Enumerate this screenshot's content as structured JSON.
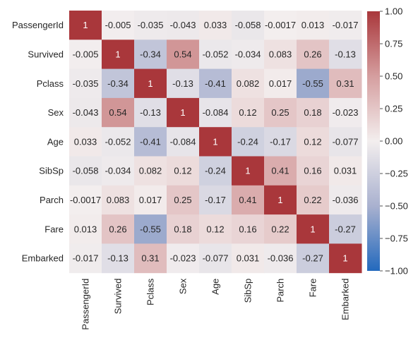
{
  "chart_data": {
    "type": "heatmap",
    "title": "",
    "xlabel": "",
    "ylabel": "",
    "row_labels": [
      "PassengerId",
      "Survived",
      "Pclass",
      "Sex",
      "Age",
      "SibSp",
      "Parch",
      "Fare",
      "Embarked"
    ],
    "col_labels": [
      "PassengerId",
      "Survived",
      "Pclass",
      "Sex",
      "Age",
      "SibSp",
      "Parch",
      "Fare",
      "Embarked"
    ],
    "values": [
      [
        1,
        -0.005,
        -0.035,
        -0.043,
        0.033,
        -0.058,
        -0.0017,
        0.013,
        -0.017
      ],
      [
        -0.005,
        1,
        -0.34,
        0.54,
        -0.052,
        -0.034,
        0.083,
        0.26,
        -0.13
      ],
      [
        -0.035,
        -0.34,
        1,
        -0.13,
        -0.41,
        0.082,
        0.017,
        -0.55,
        0.31
      ],
      [
        -0.043,
        0.54,
        -0.13,
        1,
        -0.084,
        0.12,
        0.25,
        0.18,
        -0.023
      ],
      [
        0.033,
        -0.052,
        -0.41,
        -0.084,
        1,
        -0.24,
        -0.17,
        0.12,
        -0.077
      ],
      [
        -0.058,
        -0.034,
        0.082,
        0.12,
        -0.24,
        1,
        0.41,
        0.16,
        0.031
      ],
      [
        -0.0017,
        0.083,
        0.017,
        0.25,
        -0.17,
        0.41,
        1,
        0.22,
        -0.036
      ],
      [
        0.013,
        0.26,
        -0.55,
        0.18,
        0.12,
        0.16,
        0.22,
        1,
        -0.27
      ],
      [
        -0.017,
        -0.13,
        0.31,
        -0.023,
        -0.077,
        0.031,
        -0.036,
        -0.27,
        1
      ]
    ],
    "cell_labels": [
      [
        "1",
        "-0.005",
        "-0.035",
        "-0.043",
        "0.033",
        "-0.058",
        "-0.0017",
        "0.013",
        "-0.017"
      ],
      [
        "-0.005",
        "1",
        "-0.34",
        "0.54",
        "-0.052",
        "-0.034",
        "0.083",
        "0.26",
        "-0.13"
      ],
      [
        "-0.035",
        "-0.34",
        "1",
        "-0.13",
        "-0.41",
        "0.082",
        "0.017",
        "-0.55",
        "0.31"
      ],
      [
        "-0.043",
        "0.54",
        "-0.13",
        "1",
        "-0.084",
        "0.12",
        "0.25",
        "0.18",
        "-0.023"
      ],
      [
        "0.033",
        "-0.052",
        "-0.41",
        "-0.084",
        "1",
        "-0.24",
        "-0.17",
        "0.12",
        "-0.077"
      ],
      [
        "-0.058",
        "-0.034",
        "0.082",
        "0.12",
        "-0.24",
        "1",
        "0.41",
        "0.16",
        "0.031"
      ],
      [
        "-0.0017",
        "0.083",
        "0.017",
        "0.25",
        "-0.17",
        "0.41",
        "1",
        "0.22",
        "-0.036"
      ],
      [
        "0.013",
        "0.26",
        "-0.55",
        "0.18",
        "0.12",
        "0.16",
        "0.22",
        "1",
        "-0.27"
      ],
      [
        "-0.017",
        "-0.13",
        "0.31",
        "-0.023",
        "-0.077",
        "0.031",
        "-0.036",
        "-0.27",
        "1"
      ]
    ],
    "colorbar": {
      "vmin": -1,
      "vmax": 1,
      "ticks": [
        1.0,
        0.75,
        0.5,
        0.25,
        0.0,
        -0.25,
        -0.5,
        -0.75,
        -1.0
      ],
      "tick_labels": [
        "1.00",
        "0.75",
        "0.50",
        "0.25",
        "0.00",
        "−0.25",
        "−0.50",
        "−0.75",
        "−1.00"
      ]
    },
    "colormap": {
      "name": "vlag",
      "stops": [
        {
          "v": -1.0,
          "color": "#2369bd"
        },
        {
          "v": -0.5,
          "color": "#a9b1cf"
        },
        {
          "v": 0.0,
          "color": "#f3eeee"
        },
        {
          "v": 0.5,
          "color": "#d59e9f"
        },
        {
          "v": 1.0,
          "color": "#a9373b"
        }
      ]
    },
    "grid": false
  }
}
